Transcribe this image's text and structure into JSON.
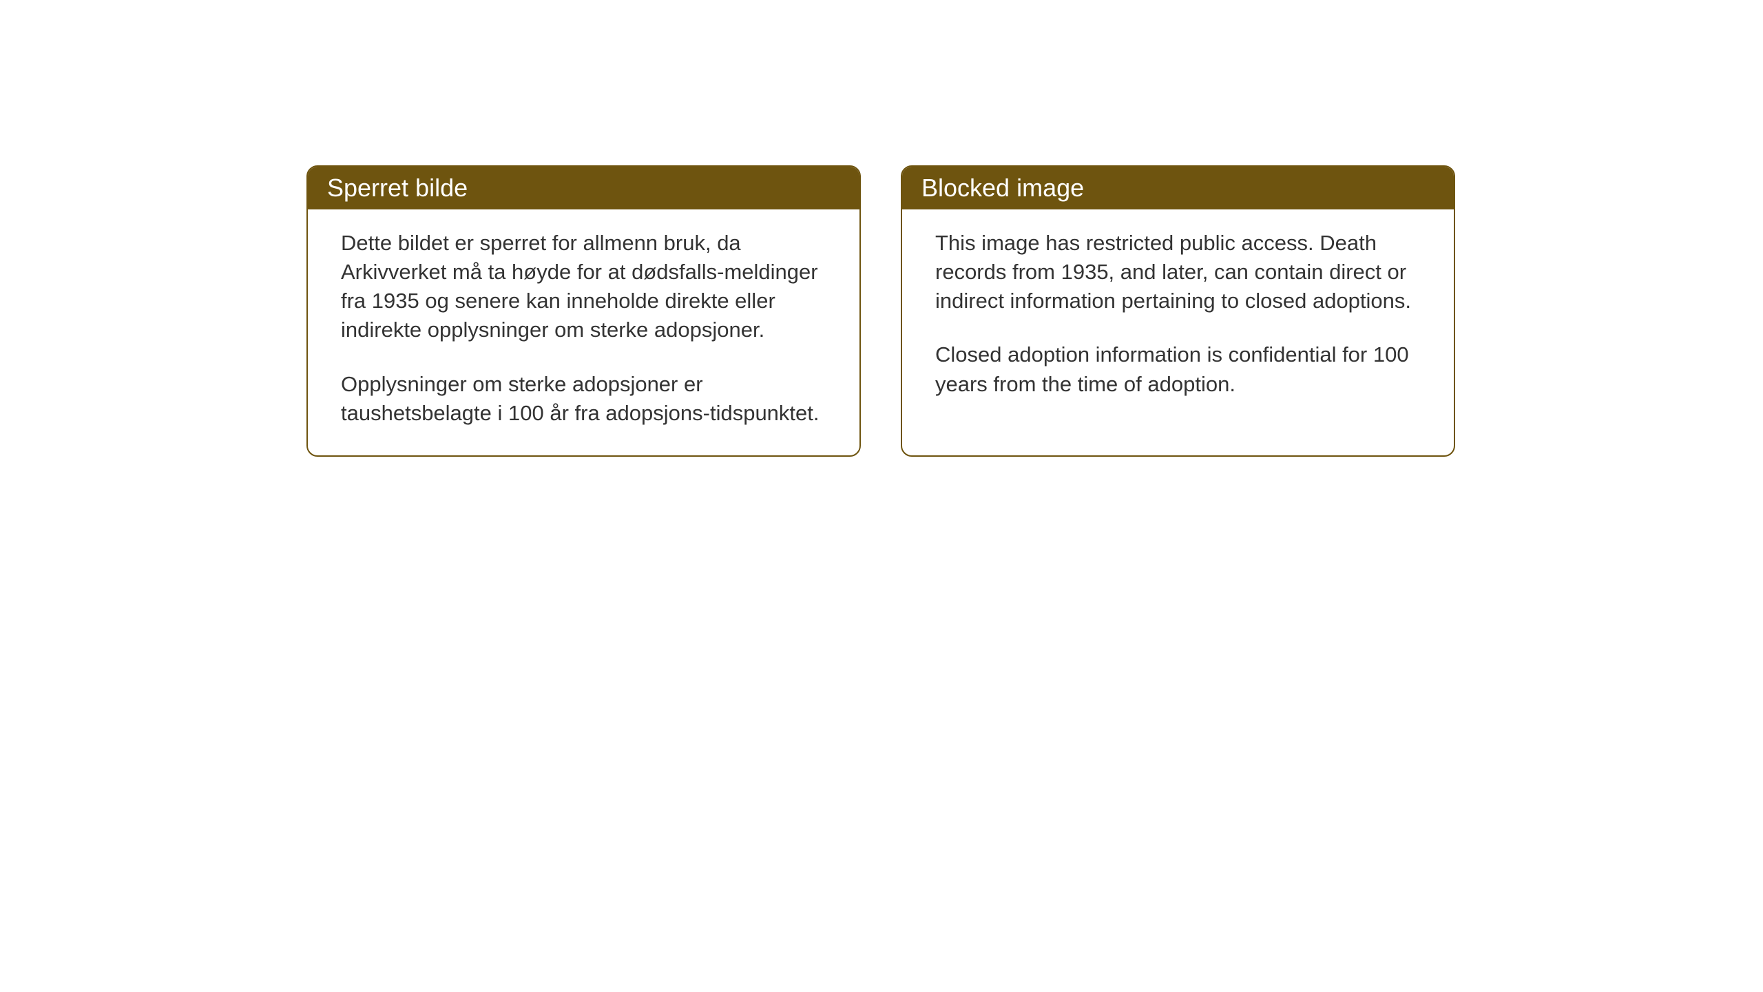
{
  "layout": {
    "background_color": "#ffffff",
    "card_border_color": "#6e540f",
    "card_border_radius": 16,
    "header_background_color": "#6e540f",
    "header_text_color": "#ffffff",
    "body_text_color": "#333333",
    "header_fontsize": 36,
    "body_fontsize": 31
  },
  "cards": {
    "norwegian": {
      "title": "Sperret bilde",
      "paragraph1": "Dette bildet er sperret for allmenn bruk, da Arkivverket må ta høyde for at dødsfalls-meldinger fra 1935 og senere kan inneholde direkte eller indirekte opplysninger om sterke adopsjoner.",
      "paragraph2": "Opplysninger om sterke adopsjoner er taushetsbelagte i 100 år fra adopsjons-tidspunktet."
    },
    "english": {
      "title": "Blocked image",
      "paragraph1": "This image has restricted public access. Death records from 1935, and later, can contain direct or indirect information pertaining to closed adoptions.",
      "paragraph2": "Closed adoption information is confidential for 100 years from the time of adoption."
    }
  }
}
